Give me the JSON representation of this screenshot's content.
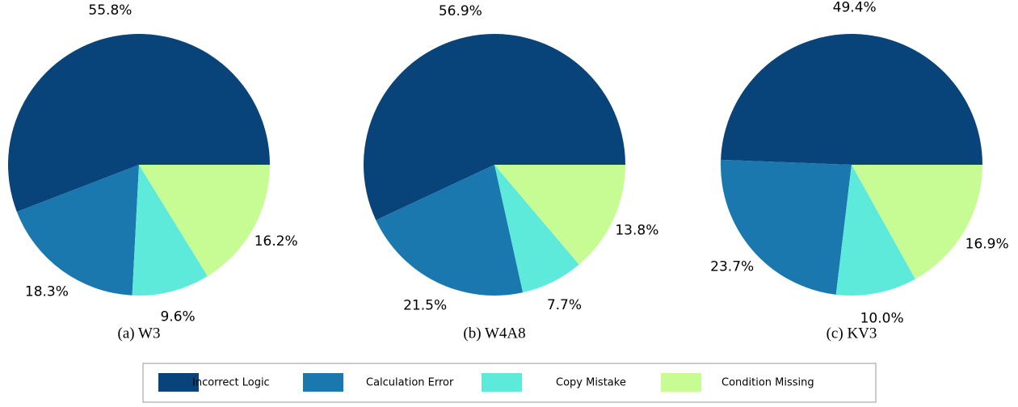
{
  "chart_data": [
    {
      "type": "pie",
      "caption": "(a) W3",
      "categories": [
        "Incorrect Logic",
        "Calculation Error",
        "Copy Mistake",
        "Condition Missing"
      ],
      "values": [
        55.8,
        18.3,
        9.6,
        16.2
      ],
      "value_labels": [
        "55.8%",
        "18.3%",
        "9.6%",
        "16.2%"
      ],
      "colors": [
        "#08437a",
        "#1a78ae",
        "#5eeadb",
        "#c7fc94"
      ]
    },
    {
      "type": "pie",
      "caption": "(b) W4A8",
      "categories": [
        "Incorrect Logic",
        "Calculation Error",
        "Copy Mistake",
        "Condition Missing"
      ],
      "values": [
        56.9,
        21.5,
        7.7,
        13.8
      ],
      "value_labels": [
        "56.9%",
        "21.5%",
        "7.7%",
        "13.8%"
      ],
      "colors": [
        "#08437a",
        "#1a78ae",
        "#5eeadb",
        "#c7fc94"
      ]
    },
    {
      "type": "pie",
      "caption": "(c) KV3",
      "categories": [
        "Incorrect Logic",
        "Calculation Error",
        "Copy Mistake",
        "Condition Missing"
      ],
      "values": [
        49.4,
        23.7,
        10.0,
        16.9
      ],
      "value_labels": [
        "49.4%",
        "23.7%",
        "10.0%",
        "16.9%"
      ],
      "colors": [
        "#08437a",
        "#1a78ae",
        "#5eeadb",
        "#c7fc94"
      ]
    }
  ]
}
